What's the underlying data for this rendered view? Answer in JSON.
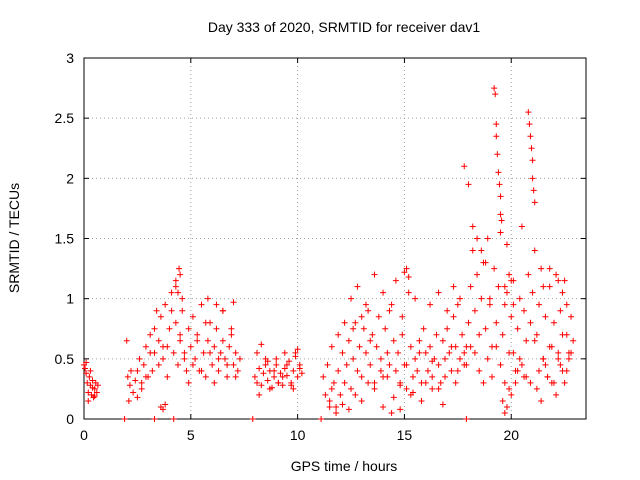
{
  "chart_data": {
    "type": "scatter",
    "title": "Day 333 of 2020, SRMTID for receiver dav1",
    "xlabel": "GPS time / hours",
    "ylabel": "SRMTID / TECUs",
    "xlim": [
      0,
      23.5
    ],
    "ylim": [
      0,
      3
    ],
    "xticks": [
      0,
      5,
      10,
      15,
      20
    ],
    "yticks": [
      0,
      0.5,
      1,
      1.5,
      2,
      2.5,
      3
    ],
    "ytick_labels": [
      "0",
      "0.5",
      "1",
      "1.5",
      "2",
      "2.5",
      "3"
    ],
    "grid": true,
    "marker": "+",
    "marker_color": "#ff0000",
    "series": [
      {
        "name": "dav1",
        "x": [
          0.0,
          0.05,
          0.1,
          0.15,
          0.2,
          0.25,
          0.3,
          0.35,
          0.4,
          0.45,
          0.5,
          0.55,
          0.6,
          0.65,
          0.1,
          0.2,
          0.3,
          0.4,
          0.5,
          2.0,
          2.05,
          2.1,
          2.15,
          2.2,
          2.3,
          2.4,
          2.5,
          2.6,
          2.7,
          2.8,
          2.9,
          3.0,
          3.1,
          3.2,
          3.3,
          3.4,
          3.5,
          3.6,
          3.7,
          3.8,
          3.9,
          4.0,
          4.1,
          4.2,
          4.3,
          4.4,
          4.5,
          4.6,
          4.7,
          4.8,
          4.9,
          5.0,
          5.1,
          5.2,
          5.3,
          5.4,
          5.5,
          5.6,
          5.7,
          5.8,
          5.9,
          6.0,
          6.1,
          6.2,
          6.3,
          6.4,
          6.5,
          6.6,
          6.7,
          6.8,
          6.9,
          7.0,
          7.1,
          7.2,
          7.3,
          2.5,
          2.7,
          2.9,
          3.1,
          3.3,
          3.5,
          3.7,
          3.9,
          4.1,
          4.3,
          4.5,
          4.7,
          4.9,
          5.1,
          5.3,
          5.5,
          5.7,
          5.9,
          6.1,
          6.3,
          6.5,
          6.7,
          6.9,
          7.1,
          4.3,
          4.4,
          4.45,
          4.5,
          4.6,
          3.6,
          3.7,
          3.8,
          5.8,
          6.2,
          6.5,
          7.0,
          8.0,
          8.1,
          8.2,
          8.3,
          8.4,
          8.5,
          8.6,
          8.7,
          8.8,
          8.9,
          9.0,
          9.1,
          9.2,
          9.3,
          9.4,
          9.5,
          9.6,
          9.7,
          9.8,
          9.9,
          10.0,
          10.1,
          10.2,
          8.1,
          8.3,
          8.5,
          8.7,
          8.9,
          9.1,
          9.3,
          9.5,
          9.7,
          9.9,
          10.1,
          8.2,
          8.6,
          9.0,
          9.4,
          9.8,
          10.0,
          11.2,
          11.3,
          11.4,
          11.5,
          11.6,
          11.7,
          11.8,
          11.9,
          12.0,
          12.1,
          12.2,
          12.3,
          12.4,
          12.5,
          12.6,
          12.7,
          12.8,
          12.9,
          13.0,
          13.1,
          13.2,
          13.3,
          13.4,
          13.5,
          13.6,
          13.7,
          13.8,
          13.9,
          14.0,
          14.1,
          14.2,
          14.3,
          14.4,
          14.5,
          14.6,
          14.7,
          14.8,
          14.9,
          15.0,
          15.1,
          15.2,
          15.3,
          15.4,
          15.5,
          15.6,
          15.7,
          15.8,
          15.9,
          16.0,
          16.1,
          16.2,
          16.3,
          16.4,
          16.5,
          16.6,
          16.7,
          16.8,
          16.9,
          17.0,
          17.1,
          17.2,
          17.3,
          17.4,
          17.5,
          17.6,
          17.7,
          17.8,
          17.9,
          11.5,
          11.8,
          12.1,
          12.4,
          12.7,
          13.0,
          13.3,
          13.6,
          13.9,
          14.2,
          14.5,
          14.8,
          15.1,
          15.4,
          15.7,
          16.0,
          16.3,
          16.6,
          16.9,
          17.2,
          17.5,
          17.8,
          12.5,
          12.8,
          13.2,
          13.6,
          14.0,
          14.3,
          14.6,
          14.9,
          15.0,
          15.1,
          15.2,
          15.5,
          16.2,
          16.6,
          17.0,
          17.3,
          17.6,
          11.6,
          11.9,
          12.2,
          12.6,
          13.0,
          13.4,
          14.0,
          14.4,
          14.8,
          15.3,
          15.8,
          16.3,
          16.8,
          17.4,
          18.0,
          18.1,
          18.2,
          18.3,
          18.4,
          18.5,
          18.6,
          18.7,
          18.8,
          18.9,
          19.0,
          19.1,
          19.2,
          19.3,
          19.4,
          19.5,
          19.6,
          19.7,
          19.8,
          19.9,
          20.0,
          20.1,
          20.2,
          20.3,
          20.4,
          20.5,
          20.6,
          20.7,
          20.8,
          20.9,
          21.0,
          21.1,
          21.2,
          21.3,
          21.4,
          21.5,
          21.6,
          21.7,
          21.8,
          21.9,
          22.0,
          22.1,
          22.2,
          22.3,
          22.4,
          22.5,
          22.6,
          22.7,
          22.8,
          22.9,
          17.9,
          18.1,
          18.3,
          18.5,
          18.7,
          18.9,
          19.1,
          19.3,
          19.5,
          19.7,
          19.9,
          20.1,
          20.3,
          20.5,
          20.7,
          20.9,
          21.1,
          21.3,
          21.5,
          21.7,
          21.9,
          22.1,
          22.3,
          22.5,
          22.7,
          19.2,
          19.25,
          19.3,
          19.3,
          19.35,
          19.4,
          19.45,
          19.5,
          19.5,
          19.55,
          20.8,
          20.85,
          20.9,
          20.95,
          21.0,
          21.0,
          21.05,
          21.1,
          17.8,
          18.0,
          18.2,
          18.4,
          18.6,
          18.8,
          19.0,
          19.6,
          19.7,
          19.8,
          20.0,
          20.2,
          20.4,
          20.6,
          21.2,
          21.4,
          21.6,
          21.8,
          22.0,
          22.2,
          22.4,
          22.6,
          22.8,
          19.7,
          19.8,
          19.9,
          20.0,
          20.1,
          21.5,
          21.8,
          22.2,
          22.4,
          22.6,
          1.9,
          3.3,
          4.2,
          7.9,
          11.1,
          17.9
        ],
        "y": [
          0.45,
          0.42,
          0.47,
          0.3,
          0.22,
          0.35,
          0.28,
          0.2,
          0.32,
          0.18,
          0.25,
          0.3,
          0.22,
          0.28,
          0.38,
          0.15,
          0.4,
          0.26,
          0.19,
          0.65,
          0.35,
          0.15,
          0.28,
          0.4,
          0.22,
          0.32,
          0.18,
          0.5,
          0.3,
          0.45,
          0.6,
          0.35,
          0.7,
          0.4,
          0.55,
          0.9,
          0.65,
          0.85,
          0.5,
          0.95,
          0.6,
          0.75,
          1.05,
          0.55,
          0.8,
          0.45,
          0.65,
          0.9,
          0.55,
          0.4,
          0.75,
          0.6,
          0.85,
          0.5,
          0.7,
          0.4,
          0.95,
          0.55,
          0.35,
          0.65,
          0.8,
          0.45,
          0.6,
          0.75,
          0.4,
          0.55,
          0.9,
          0.5,
          0.35,
          0.6,
          0.7,
          0.45,
          0.55,
          0.4,
          0.5,
          0.4,
          0.25,
          0.35,
          0.55,
          0.75,
          0.45,
          0.6,
          0.35,
          0.9,
          1.1,
          0.7,
          0.5,
          0.3,
          0.45,
          0.65,
          0.4,
          0.8,
          0.55,
          0.3,
          0.5,
          0.65,
          0.45,
          0.75,
          0.35,
          1.15,
          1.05,
          1.25,
          1.2,
          1.0,
          0.1,
          0.08,
          0.12,
          1.0,
          0.95,
          0.9,
          0.97,
          0.35,
          0.3,
          0.42,
          0.28,
          0.38,
          0.5,
          0.32,
          0.4,
          0.26,
          0.35,
          0.45,
          0.3,
          0.38,
          0.28,
          0.42,
          0.36,
          0.48,
          0.3,
          0.4,
          0.52,
          0.35,
          0.45,
          0.38,
          0.55,
          0.62,
          0.45,
          0.25,
          0.4,
          0.3,
          0.35,
          0.45,
          0.28,
          0.55,
          0.42,
          0.2,
          0.48,
          0.5,
          0.55,
          0.25,
          0.58,
          0.35,
          0.2,
          0.45,
          0.15,
          0.25,
          0.3,
          0.1,
          0.4,
          0.2,
          0.55,
          0.3,
          0.45,
          0.65,
          0.25,
          0.5,
          0.8,
          0.4,
          0.6,
          0.35,
          0.75,
          0.55,
          0.9,
          0.45,
          0.7,
          0.3,
          0.6,
          0.85,
          0.5,
          0.35,
          0.75,
          0.55,
          0.45,
          0.95,
          0.65,
          0.4,
          0.55,
          0.3,
          0.7,
          0.45,
          0.25,
          1.05,
          0.6,
          0.35,
          0.5,
          0.4,
          0.65,
          0.3,
          0.75,
          0.55,
          0.4,
          0.6,
          0.35,
          0.5,
          0.7,
          0.45,
          0.3,
          0.65,
          0.5,
          0.75,
          0.55,
          0.4,
          0.85,
          0.6,
          0.95,
          0.5,
          0.7,
          0.45,
          0.6,
          0.1,
          0.05,
          0.12,
          0.08,
          0.2,
          0.15,
          0.3,
          0.25,
          0.4,
          0.35,
          0.18,
          0.28,
          0.45,
          0.22,
          0.55,
          0.3,
          0.48,
          0.25,
          0.35,
          0.6,
          0.4,
          0.55,
          1.0,
          1.1,
          0.95,
          1.2,
          1.05,
          0.9,
          1.15,
          0.85,
          1.22,
          1.25,
          1.18,
          1.0,
          0.95,
          1.05,
          0.9,
          1.1,
          1.0,
          0.6,
          0.7,
          0.8,
          0.75,
          0.85,
          0.65,
          0.1,
          0.05,
          0.08,
          0.2,
          0.15,
          0.25,
          0.12,
          0.3,
          0.8,
          1.1,
          1.4,
          0.9,
          1.2,
          0.7,
          1.0,
          1.3,
          0.75,
          1.5,
          0.95,
          0.6,
          1.25,
          0.8,
          1.1,
          1.55,
          0.7,
          0.95,
          1.45,
          0.55,
          0.85,
          1.15,
          0.4,
          0.75,
          1.0,
          1.6,
          0.9,
          0.65,
          1.2,
          0.8,
          1.05,
          1.4,
          0.7,
          0.95,
          1.25,
          0.5,
          0.85,
          0.35,
          1.1,
          0.6,
          0.8,
          1.2,
          0.55,
          0.9,
          0.4,
          1.15,
          0.7,
          0.55,
          0.85,
          0.65,
          0.45,
          0.6,
          0.55,
          0.4,
          0.3,
          0.5,
          0.35,
          0.6,
          0.45,
          0.3,
          0.25,
          0.55,
          0.4,
          0.45,
          0.35,
          0.3,
          0.65,
          0.4,
          0.5,
          0.35,
          0.3,
          0.2,
          0.45,
          0.3,
          0.5,
          2.75,
          2.7,
          2.45,
          2.35,
          2.2,
          2.05,
          1.95,
          1.85,
          1.7,
          1.65,
          2.55,
          2.45,
          2.35,
          2.25,
          2.15,
          2.0,
          1.9,
          1.8,
          2.1,
          1.95,
          1.6,
          1.5,
          1.4,
          1.3,
          1.0,
          0.15,
          0.05,
          0.1,
          0.2,
          0.3,
          0.5,
          0.35,
          0.25,
          0.15,
          0.45,
          0.6,
          0.3,
          0.5,
          0.7,
          0.4,
          0.55,
          1.1,
          1.05,
          1.2,
          1.15,
          0.95,
          1.1,
          1.25,
          1.15,
          1.05,
          0.95,
          0.0,
          0.0,
          0.0,
          0.0,
          0.0,
          0.0
        ]
      }
    ]
  }
}
